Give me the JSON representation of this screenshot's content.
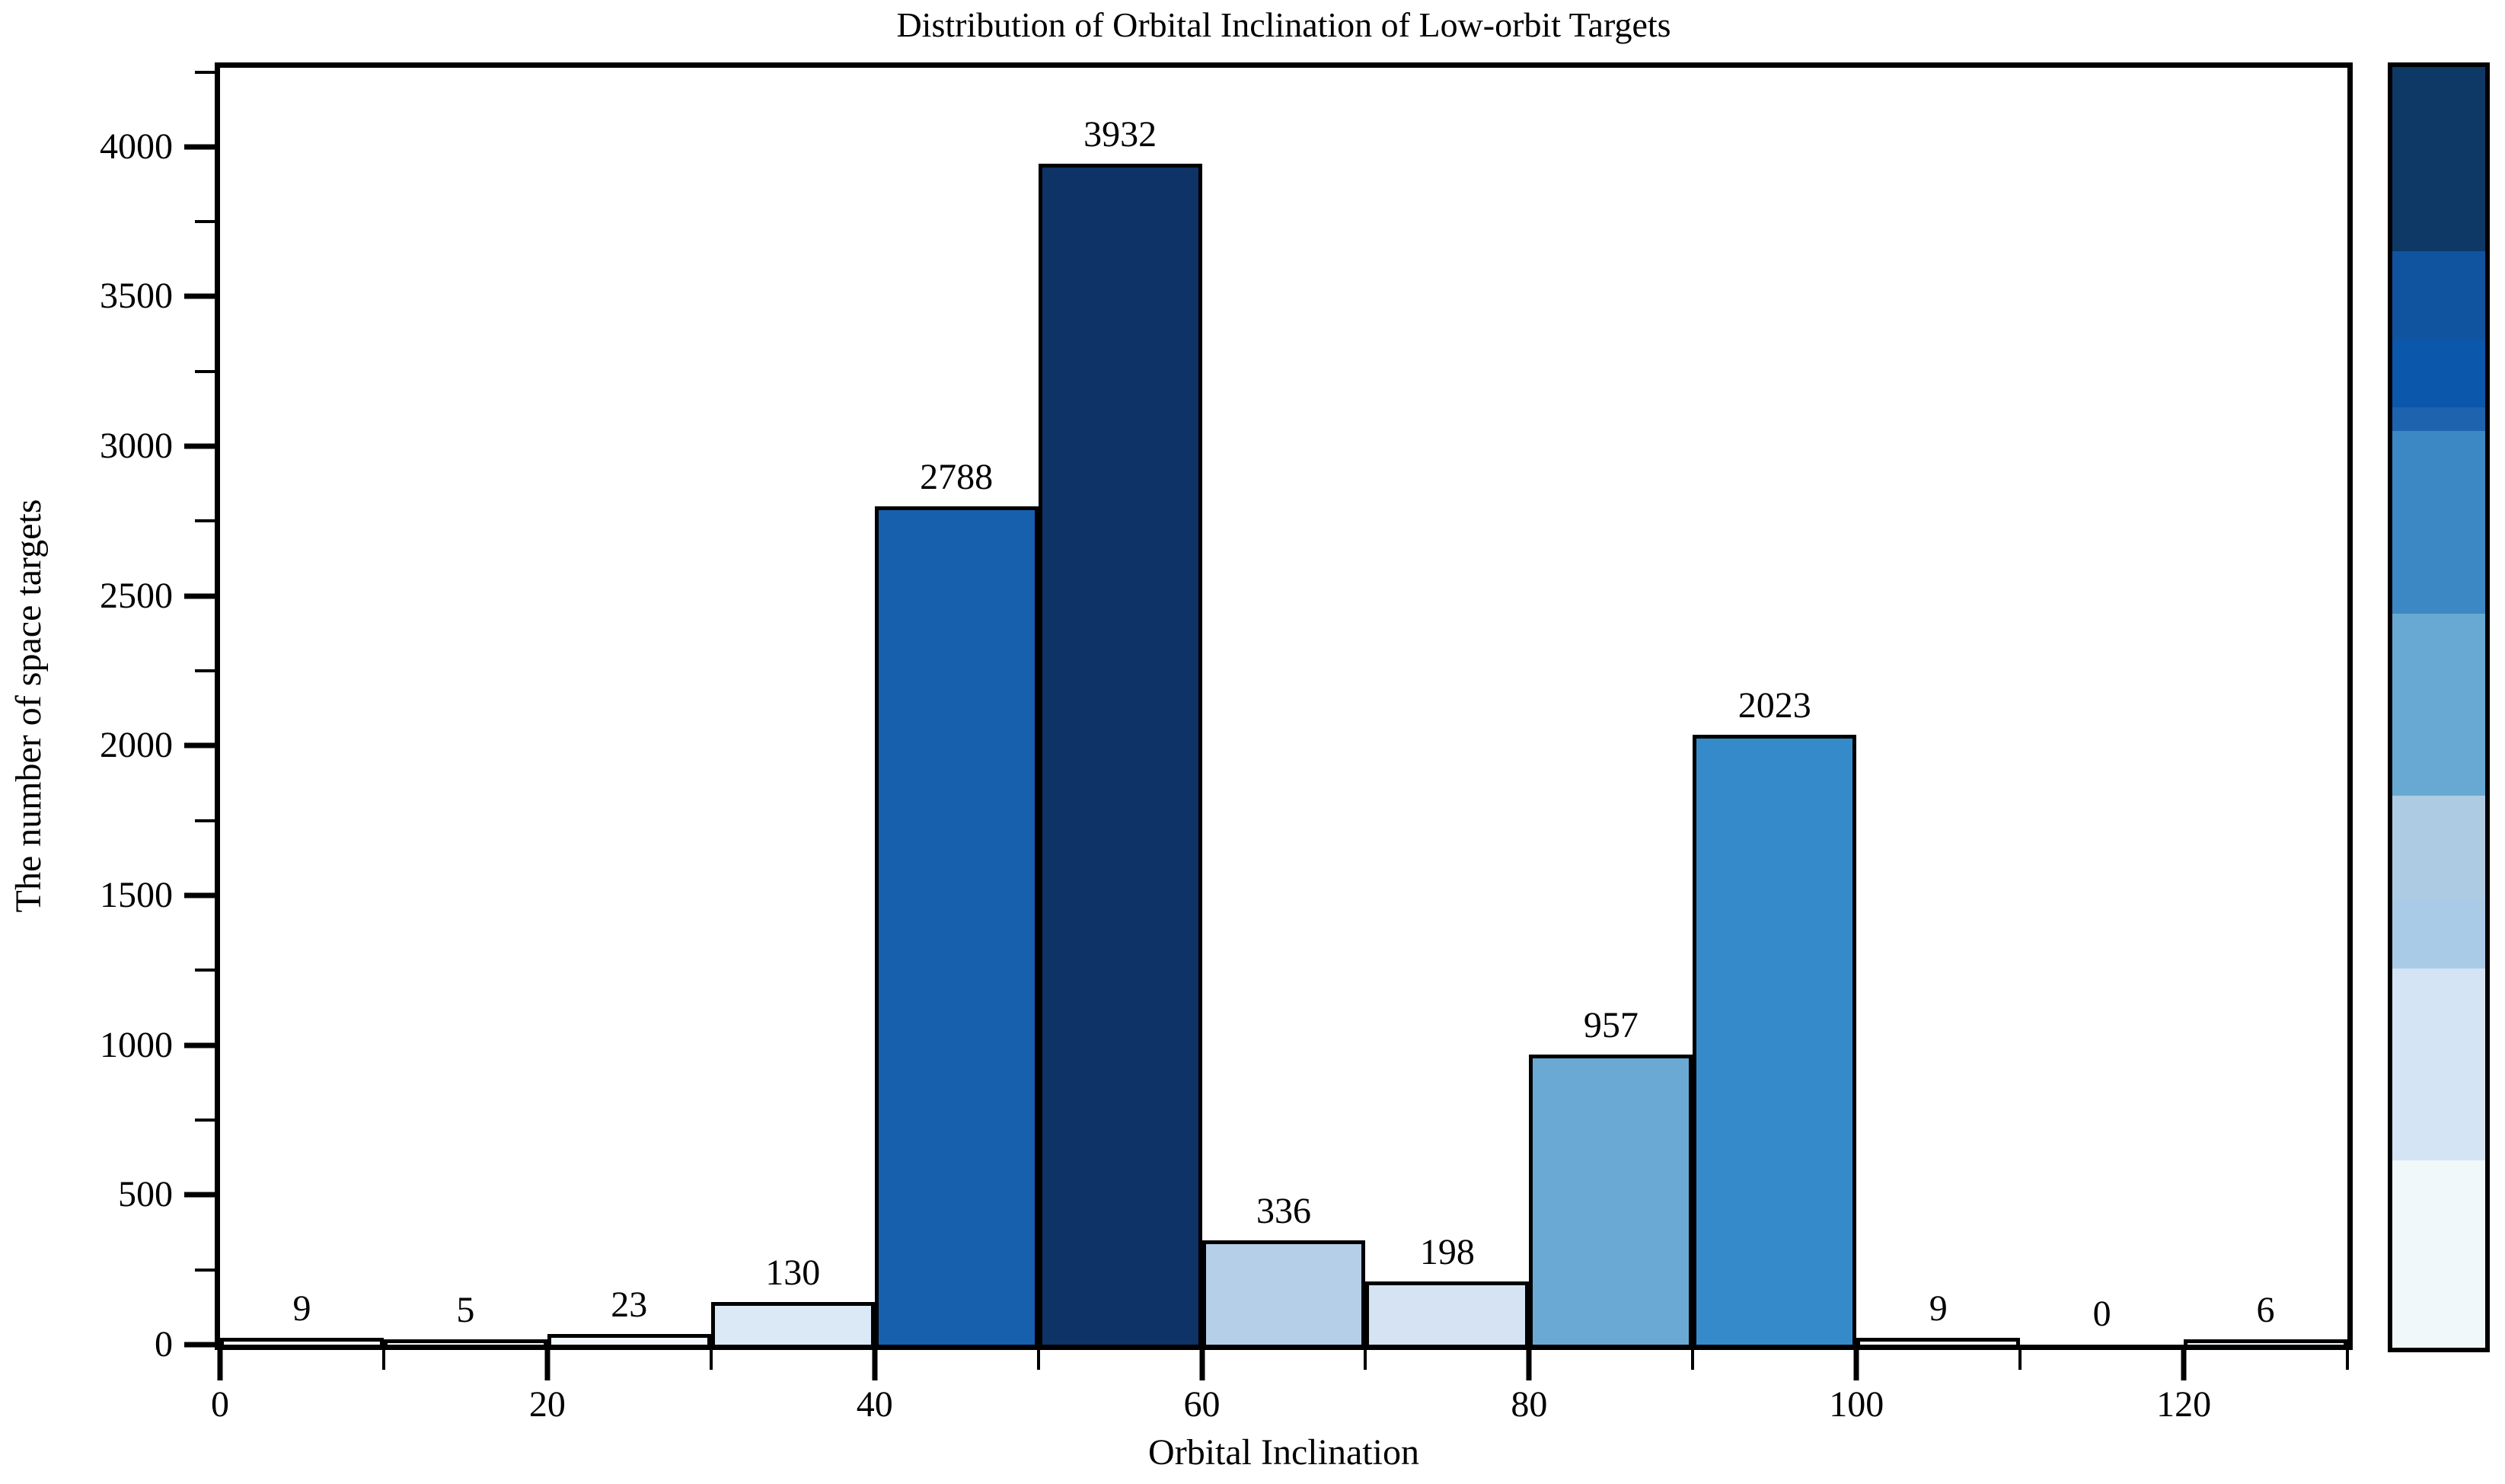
{
  "chart_data": {
    "type": "bar",
    "title": "Distribution of Orbital Inclination of Low-orbit Targets",
    "xlabel": "Orbital Inclination",
    "ylabel": "The number of space targets",
    "xlim": [
      0,
      130
    ],
    "ylim": [
      0,
      4264
    ],
    "bin_width": 10,
    "grid": false,
    "bar_edge_color": "#000000",
    "text_color": "#000000",
    "background_color": "#ffffff",
    "bins": [
      {
        "range": [
          0,
          10
        ],
        "value": 9,
        "label": "9",
        "color": "#f1f8fa"
      },
      {
        "range": [
          10,
          20
        ],
        "value": 5,
        "label": "5",
        "color": "#f6fafc"
      },
      {
        "range": [
          20,
          30
        ],
        "value": 23,
        "label": "23",
        "color": "#f3f8fc"
      },
      {
        "range": [
          30,
          40
        ],
        "value": 130,
        "label": "130",
        "color": "#dbe8f6"
      },
      {
        "range": [
          40,
          50
        ],
        "value": 2788,
        "label": "2788",
        "color": "#1660ae"
      },
      {
        "range": [
          50,
          60
        ],
        "value": 3932,
        "label": "3932",
        "color": "#0e3366"
      },
      {
        "range": [
          60,
          70
        ],
        "value": 336,
        "label": "336",
        "color": "#b5cfe8"
      },
      {
        "range": [
          70,
          80
        ],
        "value": 198,
        "label": "198",
        "color": "#d5e3f2"
      },
      {
        "range": [
          80,
          90
        ],
        "value": 957,
        "label": "957",
        "color": "#6aa9d4"
      },
      {
        "range": [
          90,
          100
        ],
        "value": 2023,
        "label": "2023",
        "color": "#358bc9"
      },
      {
        "range": [
          100,
          110
        ],
        "value": 9,
        "label": "9",
        "color": "#f1f8fa"
      },
      {
        "range": [
          110,
          120
        ],
        "value": 0,
        "label": "0",
        "color": null
      },
      {
        "range": [
          120,
          130
        ],
        "value": 6,
        "label": "6",
        "color": "#f1f8fa"
      }
    ],
    "x_major_ticks": [
      "0",
      "20",
      "40",
      "60",
      "80",
      "100",
      "120"
    ],
    "x_minor_ticks": [
      10,
      30,
      50,
      70,
      90,
      110,
      130
    ],
    "y_major_ticks": [
      "0",
      "500",
      "1000",
      "1500",
      "2000",
      "2500",
      "3000",
      "3500",
      "4000"
    ],
    "y_minor_ticks": [
      250,
      750,
      1250,
      1750,
      2250,
      2750,
      3250,
      3750,
      4250
    ],
    "legend": "none",
    "colorbar": {
      "position": "right",
      "tick_labels": [],
      "segments_top_to_bottom": [
        {
          "color": "#0e3865",
          "frac": 0.144
        },
        {
          "color": "#10549f",
          "frac": 0.068
        },
        {
          "color": "#0a57ac",
          "frac": 0.054
        },
        {
          "color": "#1e63ae",
          "frac": 0.018
        },
        {
          "color": "#3c88c4",
          "frac": 0.143
        },
        {
          "color": "#68a9d3",
          "frac": 0.142
        },
        {
          "color": "#aecbe4",
          "frac": 0.081
        },
        {
          "color": "#a9cbe8",
          "frac": 0.054
        },
        {
          "color": "#d5e4f4",
          "frac": 0.15
        },
        {
          "color": "#f1f8fa",
          "frac": 0.146
        }
      ]
    }
  }
}
